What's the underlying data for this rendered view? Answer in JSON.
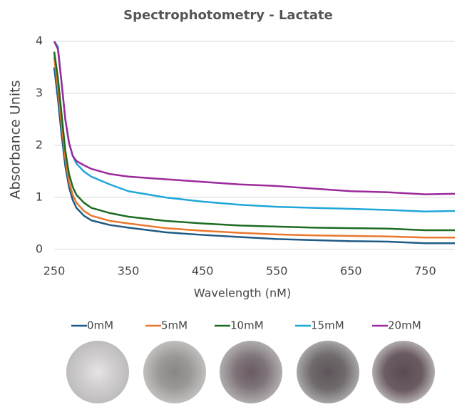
{
  "chart_data": {
    "type": "line",
    "title": "Spectrophotometry - Lactate",
    "x_label": "Wavelength   (nM)",
    "y_label": "Absorbance Units",
    "x": [
      250,
      255,
      260,
      265,
      270,
      275,
      280,
      290,
      300,
      325,
      350,
      400,
      450,
      500,
      550,
      600,
      650,
      700,
      750,
      790
    ],
    "series": [
      {
        "name": "0mM",
        "color": "#1f5a85",
        "values": [
          3.5,
          2.9,
          2.2,
          1.6,
          1.2,
          0.95,
          0.8,
          0.65,
          0.56,
          0.47,
          0.42,
          0.33,
          0.28,
          0.24,
          0.2,
          0.18,
          0.16,
          0.15,
          0.12,
          0.12
        ]
      },
      {
        "name": "5mM",
        "color": "#e8782e",
        "values": [
          3.7,
          3.1,
          2.4,
          1.75,
          1.3,
          1.05,
          0.9,
          0.74,
          0.65,
          0.55,
          0.5,
          0.41,
          0.36,
          0.32,
          0.29,
          0.27,
          0.26,
          0.25,
          0.23,
          0.23
        ]
      },
      {
        "name": "10mM",
        "color": "#1e6b22",
        "values": [
          3.8,
          3.3,
          2.6,
          1.9,
          1.45,
          1.2,
          1.05,
          0.9,
          0.8,
          0.7,
          0.63,
          0.55,
          0.5,
          0.46,
          0.44,
          0.42,
          0.41,
          0.4,
          0.37,
          0.37
        ]
      },
      {
        "name": "15mM",
        "color": "#20a6d8",
        "values": [
          4.0,
          3.9,
          3.2,
          2.5,
          2.05,
          1.8,
          1.65,
          1.5,
          1.4,
          1.25,
          1.12,
          1.0,
          0.92,
          0.86,
          0.82,
          0.8,
          0.78,
          0.76,
          0.73,
          0.74
        ]
      },
      {
        "name": "20mM",
        "color": "#9b2a9c",
        "values": [
          4.0,
          3.85,
          3.2,
          2.5,
          2.05,
          1.8,
          1.7,
          1.62,
          1.55,
          1.45,
          1.4,
          1.35,
          1.3,
          1.25,
          1.22,
          1.17,
          1.12,
          1.1,
          1.06,
          1.07
        ]
      }
    ],
    "xlim": [
      250,
      790
    ],
    "xticks": [
      250,
      350,
      450,
      550,
      650,
      750
    ],
    "ylim": [
      0,
      4
    ],
    "yticks": [
      0,
      1,
      2,
      3,
      4
    ],
    "grid": true
  }
}
